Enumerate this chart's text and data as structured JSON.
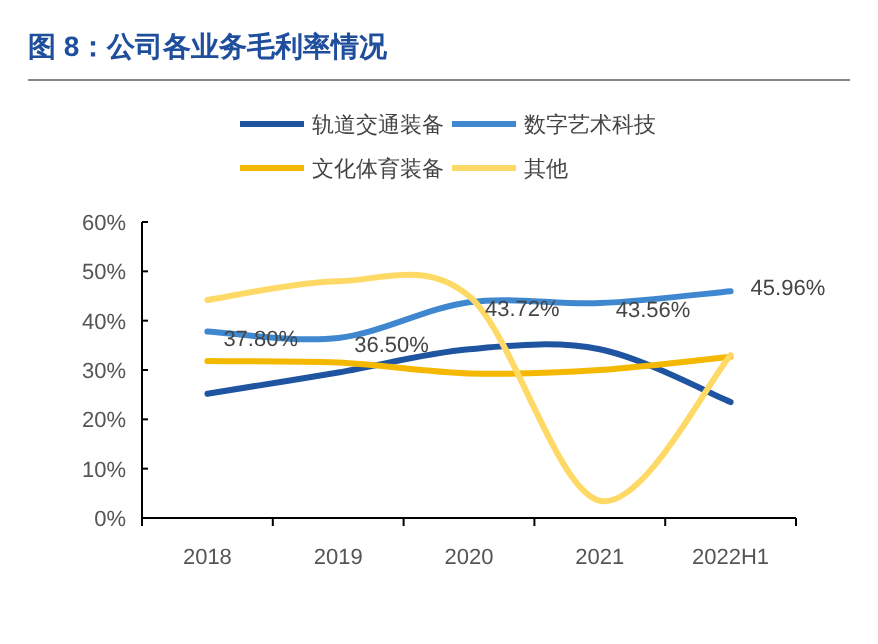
{
  "chart_data": {
    "type": "line",
    "title": "图 8：公司各业务毛利率情况",
    "categories": [
      "2018",
      "2019",
      "2020",
      "2021",
      "2022H1"
    ],
    "ylim": [
      0,
      60
    ],
    "yticks": [
      {
        "value": 0,
        "label": "0%"
      },
      {
        "value": 10,
        "label": "10%"
      },
      {
        "value": 20,
        "label": "20%"
      },
      {
        "value": 30,
        "label": "30%"
      },
      {
        "value": 40,
        "label": "40%"
      },
      {
        "value": 50,
        "label": "50%"
      },
      {
        "value": 60,
        "label": "60%"
      }
    ],
    "legend": "top",
    "grid": false,
    "series": [
      {
        "name": "轨道交通装备",
        "color": "#1f55a0",
        "values": [
          25.2,
          29.5,
          34.2,
          34.2,
          23.5
        ]
      },
      {
        "name": "数字艺术科技",
        "color": "#3f88d0",
        "values": [
          37.8,
          36.5,
          43.72,
          43.56,
          45.96
        ],
        "value_labels": [
          "37.80%",
          "36.50%",
          "43.72%",
          "43.56%",
          "45.96%"
        ]
      },
      {
        "name": "文化体育装备",
        "color": "#f5b800",
        "values": [
          31.8,
          31.5,
          29.3,
          30.0,
          32.7
        ]
      },
      {
        "name": "其他",
        "color": "#ffd966",
        "values": [
          44.2,
          48.0,
          45.0,
          3.5,
          33.0
        ]
      }
    ]
  }
}
